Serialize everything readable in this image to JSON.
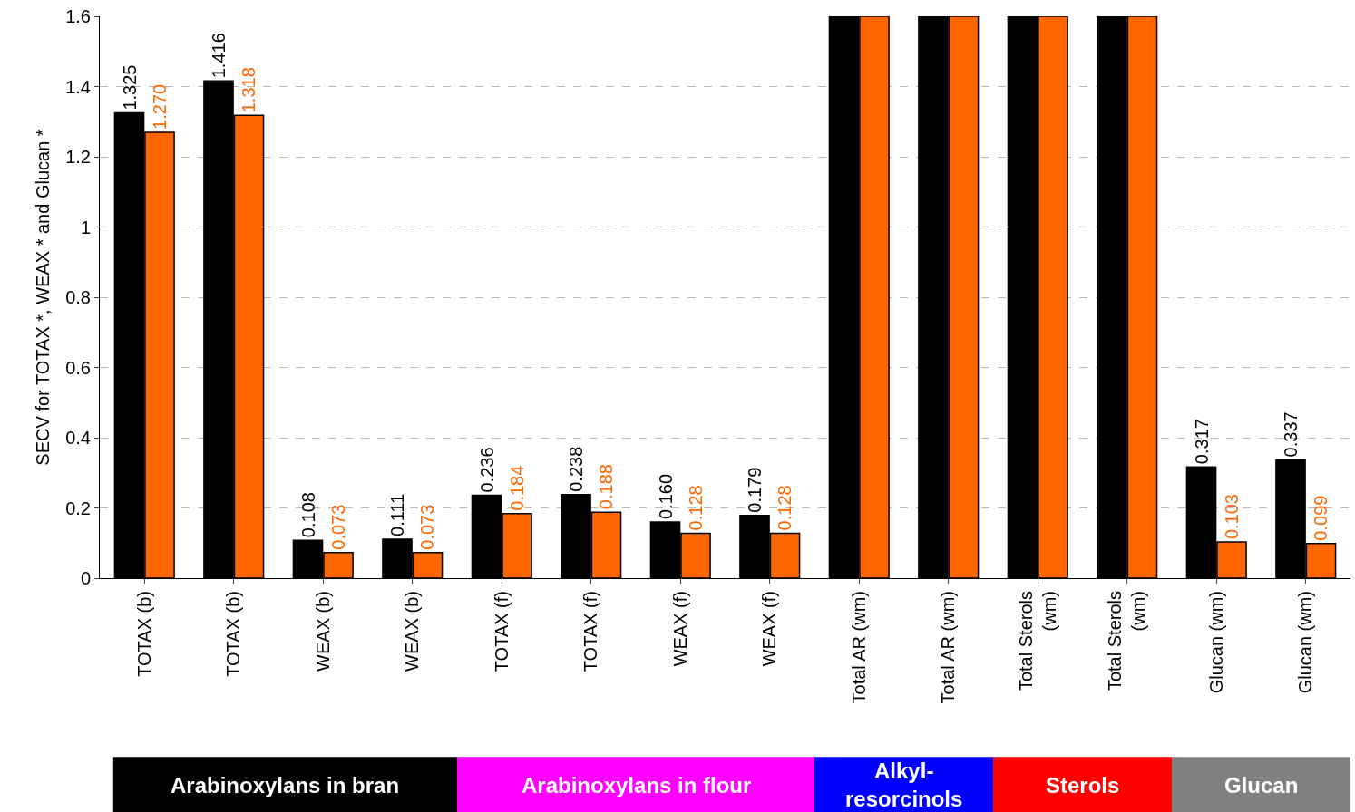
{
  "chart_data": {
    "type": "bar",
    "ylabel": "SECV for TOTAX *, WEAX * and Glucan *",
    "categories": [
      "TOTAX (b)",
      "TOTAX (b)",
      "WEAX (b)",
      "WEAX (b)",
      "TOTAX (f)",
      "TOTAX (f)",
      "WEAX (f)",
      "WEAX (f)",
      "Total AR (wm)",
      "Total AR (wm)",
      "Total Sterols (wm)",
      "Total Sterols (wm)",
      "Glucan (wm)",
      "Glucan (wm)"
    ],
    "series": [
      {
        "color": "#000000",
        "values": [
          1.325,
          1.416,
          0.108,
          0.111,
          0.236,
          0.238,
          0.16,
          0.179,
          1.6,
          1.6,
          1.6,
          1.6,
          0.317,
          0.337
        ],
        "value_labels": [
          "1.325",
          "1.416",
          "0.108",
          "0.111",
          "0.236",
          "0.238",
          "0.160",
          "0.179",
          null,
          null,
          null,
          null,
          "0.317",
          "0.337"
        ]
      },
      {
        "color": "#ff6600",
        "values": [
          1.27,
          1.318,
          0.073,
          0.073,
          0.184,
          0.188,
          0.128,
          0.128,
          1.6,
          1.6,
          1.6,
          1.6,
          0.103,
          0.099
        ],
        "value_labels": [
          "1.270",
          "1.318",
          "0.073",
          "0.073",
          "0.184",
          "0.188",
          "0.128",
          "0.128",
          null,
          null,
          null,
          null,
          "0.103",
          "0.099"
        ]
      }
    ],
    "ylim": [
      0,
      1.6
    ],
    "yticks": [
      0,
      0.2,
      0.4,
      0.6,
      0.8,
      1,
      1.2,
      1.4,
      1.6
    ],
    "grid": "y",
    "legend": false,
    "annotations": [
      "Arabinoxylans in bran",
      "Arabinoxylans in flour",
      "Alkyl-resorcinols",
      "Sterols",
      "Glucan"
    ]
  }
}
